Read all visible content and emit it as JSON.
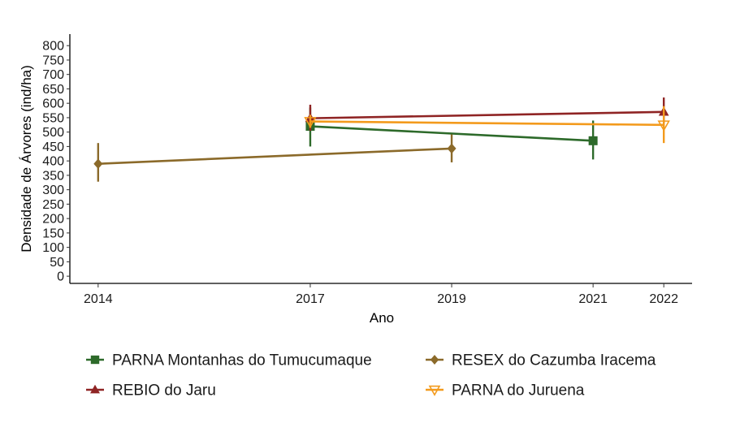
{
  "chart_data": {
    "type": "line",
    "title": "",
    "xlabel": "Ano",
    "ylabel": "Densidade de Árvores (ind/ha)",
    "x_ticks": [
      2014,
      2017,
      2019,
      2021,
      2022
    ],
    "x_tick_labels": [
      "2014",
      "2017",
      "2019",
      "2021",
      "2022"
    ],
    "xlim": [
      2013.6,
      2022.4
    ],
    "ylim": [
      -25,
      840
    ],
    "y_ticks": [
      0,
      50,
      100,
      150,
      200,
      250,
      300,
      350,
      400,
      450,
      500,
      550,
      600,
      650,
      700,
      750,
      800
    ],
    "y_tick_labels": [
      "0",
      "50",
      "100",
      "150",
      "200",
      "250",
      "300",
      "350",
      "400",
      "450",
      "500",
      "550",
      "600",
      "650",
      "700",
      "750",
      "800"
    ],
    "grid": false,
    "legend_position": "bottom",
    "series": [
      {
        "name": "PARNA Montanhas do Tumucumaque",
        "color": "#2d6a2a",
        "marker": "square",
        "x": [
          2017,
          2021
        ],
        "y": [
          520,
          470
        ],
        "error_low": [
          450,
          405
        ],
        "error_high": [
          585,
          540
        ]
      },
      {
        "name": "RESEX do Cazumba Iracema",
        "color": "#8b6a2a",
        "marker": "diamond",
        "x": [
          2014,
          2019
        ],
        "y": [
          390,
          443
        ],
        "error_low": [
          328,
          395
        ],
        "error_high": [
          462,
          492
        ]
      },
      {
        "name": "REBIO do Jaru",
        "color": "#8f2424",
        "marker": "triangle-filled",
        "x": [
          2017,
          2022
        ],
        "y": [
          548,
          570
        ],
        "error_low": [
          505,
          532
        ],
        "error_high": [
          595,
          620
        ]
      },
      {
        "name": "PARNA do Juruena",
        "color": "#f39a1c",
        "marker": "triangle-down-open",
        "x": [
          2017,
          2022
        ],
        "y": [
          537,
          525
        ],
        "error_low": [
          515,
          462
        ],
        "error_high": [
          560,
          590
        ]
      }
    ],
    "legend_order": [
      0,
      1,
      2,
      3
    ]
  }
}
